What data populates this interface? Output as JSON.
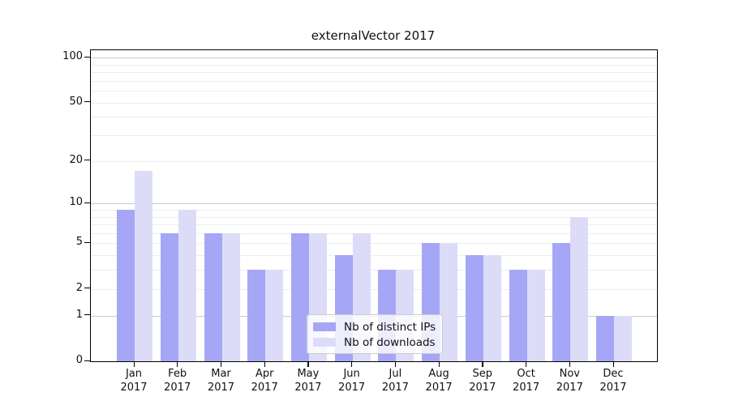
{
  "title": "externalVector 2017",
  "chart_data": {
    "type": "bar",
    "title": "externalVector 2017",
    "yscale": "log10(1+v)",
    "grid": true,
    "legend_position": "lower-center-inside",
    "categories": [
      "Jan",
      "Feb",
      "Mar",
      "Apr",
      "May",
      "Jun",
      "Jul",
      "Aug",
      "Sep",
      "Oct",
      "Nov",
      "Dec"
    ],
    "year": "2017",
    "series": [
      {
        "name": "Nb of distinct IPs",
        "color": "#a6a6f7",
        "values": [
          9,
          6,
          6,
          3,
          6,
          4,
          3,
          5,
          4,
          3,
          5,
          1
        ]
      },
      {
        "name": "Nb of downloads",
        "color": "#dcdcf9",
        "values": [
          17,
          9,
          6,
          3,
          6,
          6,
          3,
          5,
          4,
          3,
          8,
          1
        ]
      }
    ],
    "yticks": [
      0,
      1,
      2,
      5,
      10,
      20,
      50,
      100
    ],
    "major_gridlines": [
      1,
      10,
      100
    ],
    "minor_gridlines": [
      2,
      3,
      4,
      5,
      6,
      7,
      8,
      9,
      20,
      30,
      40,
      50,
      60,
      70,
      80,
      90
    ],
    "ylim": [
      0,
      112
    ]
  }
}
